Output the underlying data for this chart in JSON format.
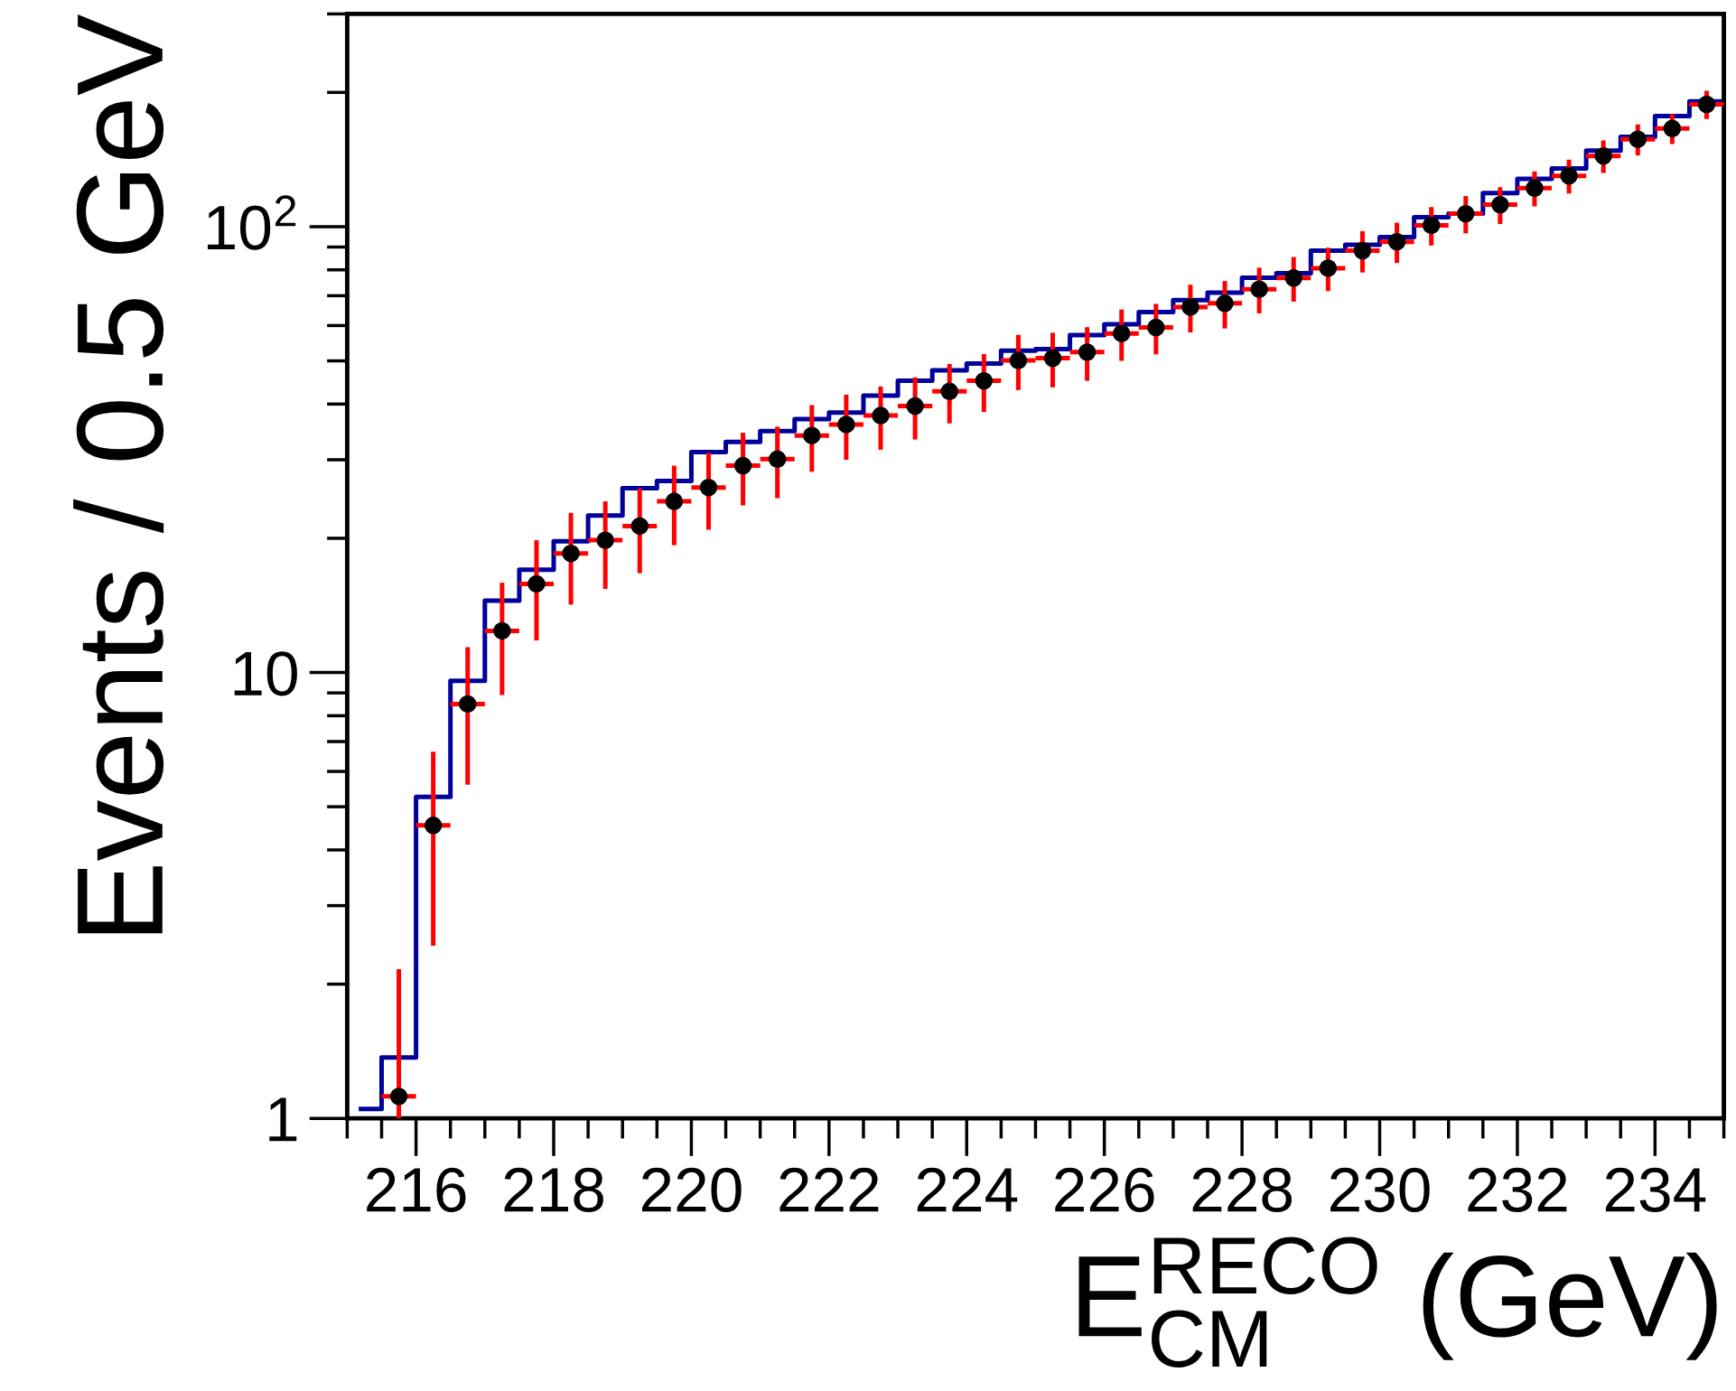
{
  "chart_data": {
    "type": "step",
    "xlabel": "E$^{RECO}$$_{CM}$ (GeV)",
    "ylabel": "Events / 0.5 GeV",
    "log": "y",
    "grid": false,
    "legend": false,
    "xlim": [
      215,
      235
    ],
    "ylim": [
      1,
      300
    ],
    "xticks": [
      216,
      218,
      220,
      222,
      224,
      226,
      228,
      230,
      232,
      234
    ],
    "yticks": [
      1,
      10,
      {
        "value": 100,
        "label": "10$^{2}$"
      }
    ],
    "series": [
      {
        "type": "step",
        "color": "#00009a",
        "line_style": "solid",
        "marker": "none",
        "x": [
          215.2,
          215.5,
          216,
          216.5,
          217,
          217.5,
          218,
          218.5,
          219,
          219.5,
          220,
          220.5,
          221,
          221.5,
          222,
          222.5,
          223,
          223.5,
          224,
          224.5,
          225,
          225.5,
          226,
          226.5,
          227,
          227.5,
          228,
          228.5,
          229,
          229.5,
          230,
          230.5,
          231,
          231.5,
          232,
          232.5,
          233,
          233.5,
          234,
          234.5,
          235
        ],
        "values": [
          1.05,
          1.37,
          5.26,
          9.58,
          14.5,
          17.0,
          19.7,
          22.5,
          25.9,
          26.9,
          31.2,
          32.9,
          34.8,
          37.0,
          38.3,
          41.8,
          45.1,
          47.6,
          49.3,
          52.7,
          53.1,
          57.1,
          60.4,
          64.3,
          68.4,
          71.1,
          76.8,
          78.6,
          88.3,
          91.1,
          94.7,
          105,
          107,
          119,
          128,
          135,
          148,
          159,
          177,
          191,
          191
        ]
      },
      {
        "type": "scatter",
        "color": "#000000",
        "marker": "circle",
        "x": [
          215.75,
          216.25,
          216.75,
          217.25,
          217.75,
          218.25,
          218.75,
          219.25,
          219.75,
          220.25,
          220.75,
          221.25,
          221.75,
          222.25,
          222.75,
          223.25,
          223.75,
          224.25,
          224.75,
          225.25,
          225.75,
          226.25,
          226.75,
          227.25,
          227.75,
          228.25,
          228.75,
          229.25,
          229.75,
          230.25,
          230.75,
          231.25,
          231.75,
          232.25,
          232.75,
          233.25,
          233.75,
          234.25,
          234.75
        ],
        "values": [
          1.12,
          4.54,
          8.5,
          12.4,
          15.8,
          18.5,
          19.8,
          21.3,
          24.2,
          26.0,
          29.1,
          30.1,
          34.0,
          36.0,
          37.7,
          39.6,
          42.7,
          45.1,
          50.1,
          50.7,
          52.3,
          57.6,
          59.4,
          66.0,
          67.3,
          72.4,
          76.7,
          80.7,
          88.3,
          92.5,
          100.7,
          106.9,
          112,
          122,
          130,
          144,
          157,
          166,
          188
        ],
        "errors": [
          [
            1,
            2.16
          ],
          2.1,
          2.9,
          3.5,
          4.0,
          4.3,
          4.4,
          4.6,
          4.9,
          5.1,
          5.4,
          5.5,
          5.8,
          6.0,
          6.1,
          6.3,
          6.5,
          6.7,
          7.1,
          7.1,
          7.2,
          7.6,
          7.7,
          8.1,
          8.2,
          8.5,
          8.8,
          9.0,
          9.4,
          9.6,
          10.0,
          10.3,
          10.6,
          11.0,
          11.4,
          12.0,
          12.5,
          12.9,
          13.7
        ],
        "xerrors": [
          0.25,
          0.25,
          0.25,
          0.25,
          0.25,
          0.25,
          0.25,
          0.25,
          0.25,
          0.25,
          0.25,
          0.25,
          0.25,
          0.25,
          0.25,
          0.25,
          0.25,
          0.25,
          0.25,
          0.25,
          0.25,
          0.25,
          0.25,
          0.25,
          0.25,
          0.25,
          0.25,
          0.25,
          0.25,
          0.25,
          0.25,
          0.25,
          0.25,
          0.25,
          0.25,
          0.25,
          0.25,
          0.25,
          0.25
        ]
      }
    ]
  }
}
